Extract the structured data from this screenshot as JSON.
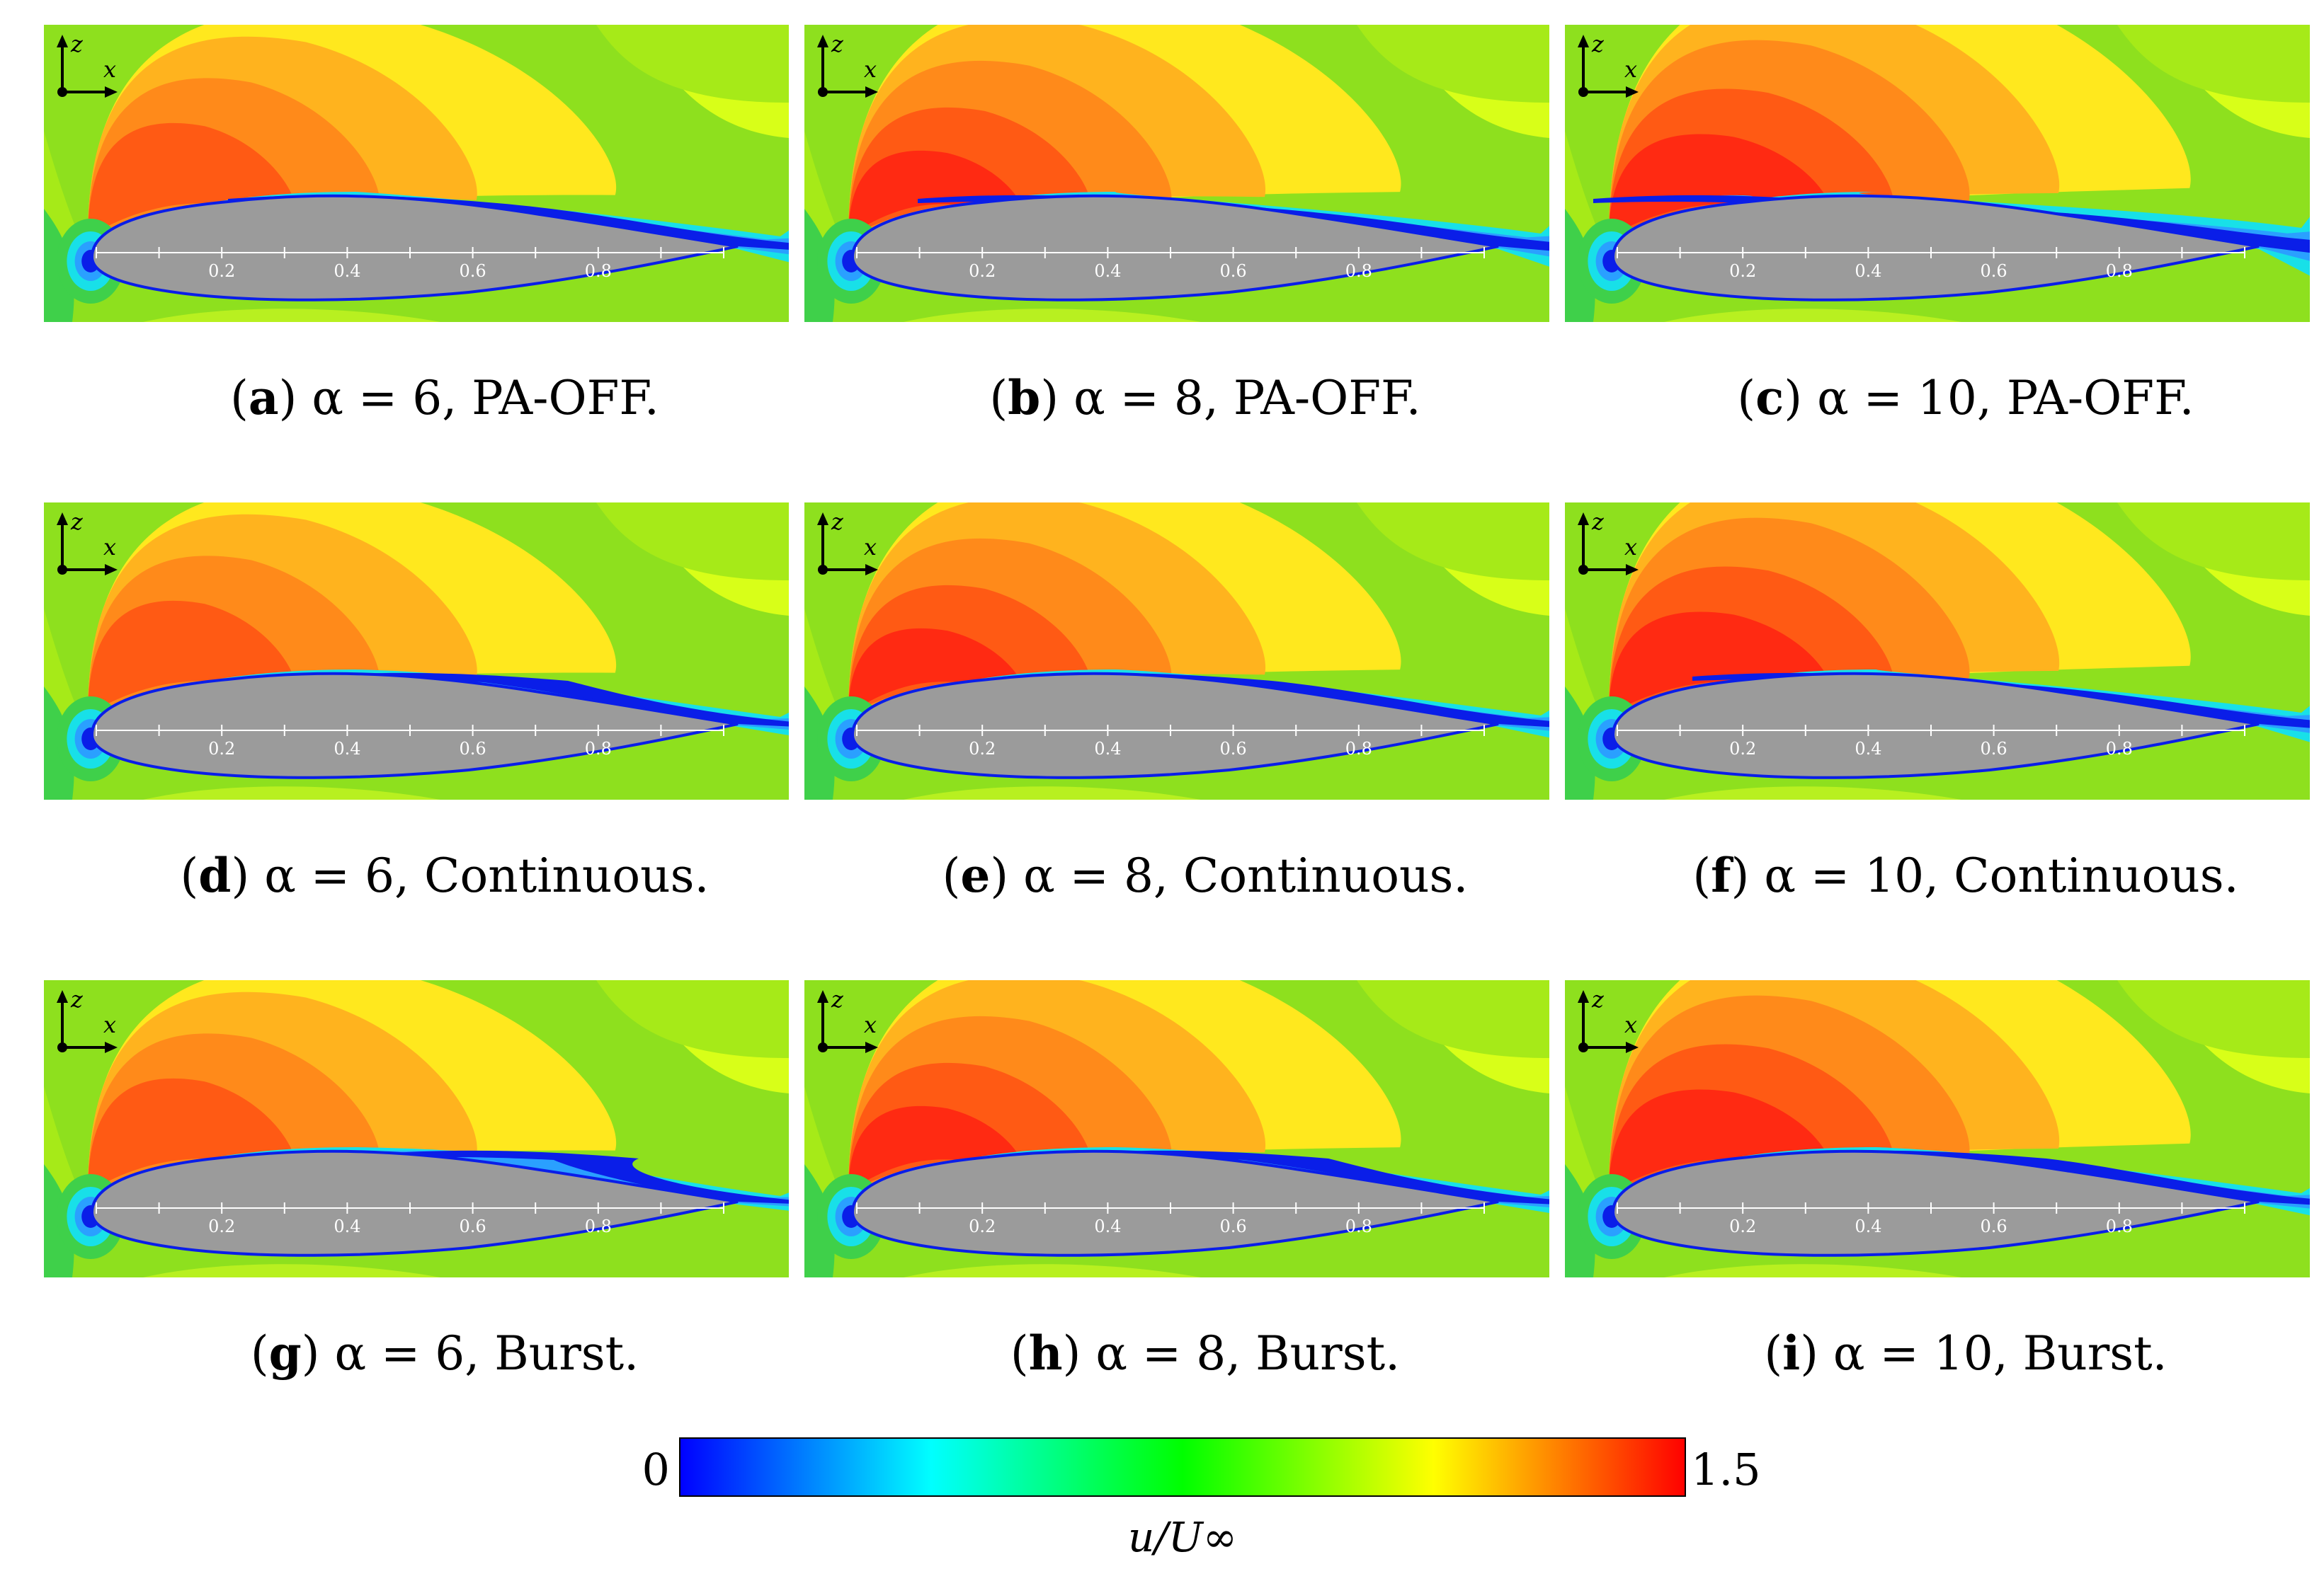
{
  "panels": [
    {
      "id": "a",
      "letter": "a",
      "alpha": 6,
      "mode": "PA-OFF",
      "caption": "α = 6, PA-OFF."
    },
    {
      "id": "b",
      "letter": "b",
      "alpha": 8,
      "mode": "PA-OFF",
      "caption": "α = 8, PA-OFF."
    },
    {
      "id": "c",
      "letter": "c",
      "alpha": 10,
      "mode": "PA-OFF",
      "caption": "α = 10, PA-OFF."
    },
    {
      "id": "d",
      "letter": "d",
      "alpha": 6,
      "mode": "Continuous",
      "caption": "α = 6, Continuous."
    },
    {
      "id": "e",
      "letter": "e",
      "alpha": 8,
      "mode": "Continuous",
      "caption": "α = 8, Continuous."
    },
    {
      "id": "f",
      "letter": "f",
      "alpha": 10,
      "mode": "Continuous",
      "caption": "α = 10, Continuous."
    },
    {
      "id": "g",
      "letter": "g",
      "alpha": 6,
      "mode": "Burst",
      "caption": "α = 6, Burst."
    },
    {
      "id": "h",
      "letter": "h",
      "alpha": 8,
      "mode": "Burst",
      "caption": "α = 8, Burst."
    },
    {
      "id": "i",
      "letter": "i",
      "alpha": 10,
      "mode": "Burst",
      "caption": "α = 10, Burst."
    }
  ],
  "axis_letters": {
    "vertical": "z",
    "horizontal": "x"
  },
  "chord_ticks": [
    "0.2",
    "0.4",
    "0.6",
    "0.8"
  ],
  "colorbar": {
    "min_label": "0",
    "max_label": "1.5",
    "title": "u/U∞",
    "min": 0,
    "max": 1.5,
    "colors": [
      "#0000ff",
      "#00ffff",
      "#00ff00",
      "#ffff00",
      "#ff0000"
    ]
  },
  "field_colors": {
    "freestream": "#8ee01e",
    "airfoil": "#9b9b9b",
    "low_speed": "#0a1ee8",
    "high_speed": "#ff1a10"
  }
}
